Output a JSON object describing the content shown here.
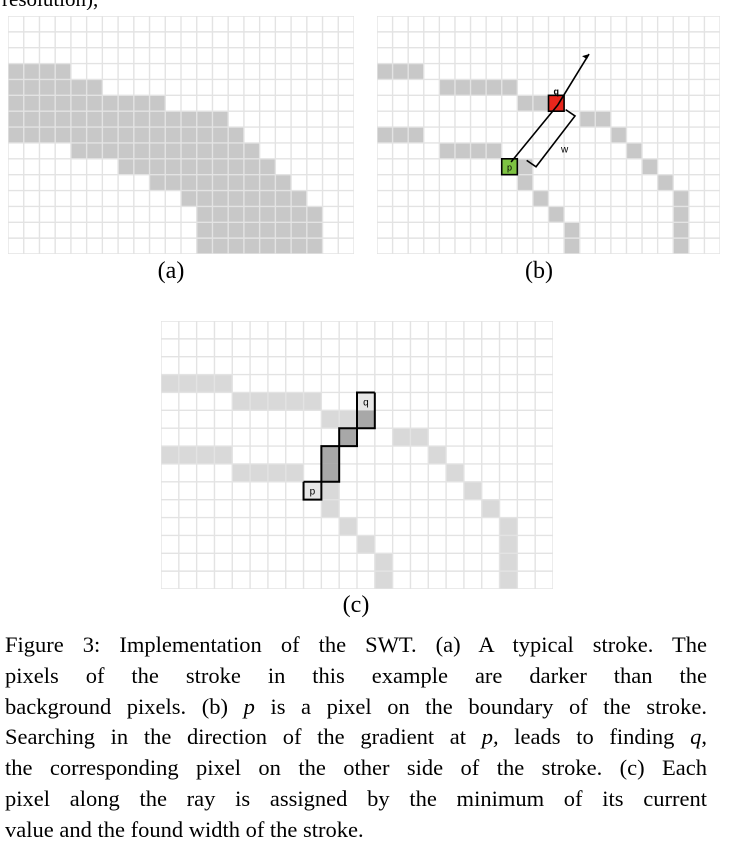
{
  "header_fragment": "resolution),",
  "panels": {
    "a": {
      "label": "(a)"
    },
    "b": {
      "label": "(b)",
      "point_p": "p",
      "point_q": "q",
      "width_label": "w"
    },
    "c": {
      "label": "(c)",
      "point_p": "p",
      "point_q": "q"
    }
  },
  "colors": {
    "stroke_dark": "#c8c8c8",
    "stroke_light": "#d9d9d9",
    "grid_line": "#e3e3e3",
    "p_marker": "#7dc242",
    "q_marker": "#e8261c",
    "ray_fill": "#a8a8a8"
  },
  "caption": {
    "lines": [
      "Figure 3: Implementation of the SWT. (a) A typical stroke. The",
      "pixels of the stroke in this example are darker than the",
      "background pixels. (b) p is a pixel on the boundary of the stroke.",
      "Searching in the direction of the gradient at p, leads to finding q,",
      "the corresponding pixel on the other side of the stroke. (c) Each",
      "pixel along the ray is assigned by the minimum of its current",
      "value and the found width of the stroke."
    ]
  }
}
